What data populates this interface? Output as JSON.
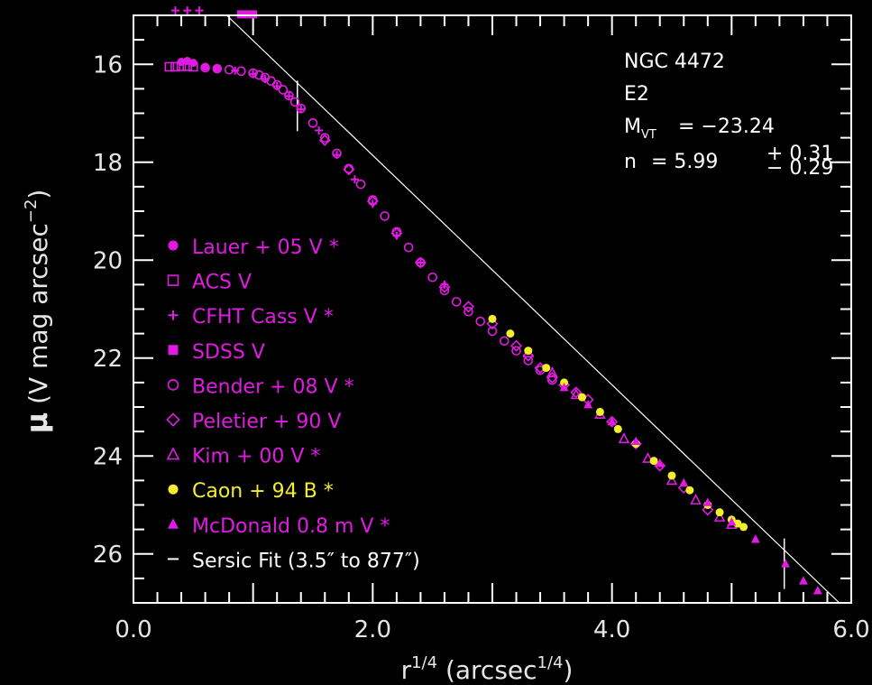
{
  "chart_data": {
    "type": "scatter",
    "xlabel_base": "r",
    "xlabel_exp": "1/4",
    "xlabel_units_open": " (arcsec",
    "xlabel_units_exp": "1/4",
    "xlabel_units_close": ")",
    "ylabel_mu": "μ",
    "ylabel_text": " (V mag arcsec",
    "ylabel_exp": "−2",
    "ylabel_close": ")",
    "xlim": [
      0.0,
      6.0
    ],
    "ylim": [
      27.0,
      15.0
    ],
    "x_ticks": [
      0.0,
      2.0,
      4.0,
      6.0
    ],
    "x_tick_labels": [
      "0.0",
      "2.0",
      "4.0",
      "6.0"
    ],
    "y_ticks": [
      16,
      18,
      20,
      22,
      24,
      26
    ],
    "y_tick_labels": [
      "16",
      "18",
      "20",
      "22",
      "24",
      "26"
    ],
    "x_minor_step": 0.2,
    "y_minor_step": 0.5,
    "info": {
      "galaxy": "NGC 4472",
      "type": "E2",
      "mag_label": "M",
      "mag_sub": "VT",
      "mag_value": "=  −23.24",
      "n_label": "n",
      "n_value": "=  5.99",
      "n_err_plus": "+ 0.31",
      "n_err_minus": "− 0.29"
    },
    "legend": [
      {
        "label": "Lauer + 05 V *",
        "marker": "filled-circle",
        "color": "#e11be1"
      },
      {
        "label": "ACS V",
        "marker": "open-square",
        "color": "#e11be1"
      },
      {
        "label": "CFHT Cass V *",
        "marker": "plus",
        "color": "#e11be1"
      },
      {
        "label": "SDSS V",
        "marker": "filled-square",
        "color": "#e11be1"
      },
      {
        "label": "Bender + 08 V *",
        "marker": "open-circle",
        "color": "#e11be1"
      },
      {
        "label": "Peletier + 90 V",
        "marker": "open-diamond",
        "color": "#e11be1"
      },
      {
        "label": "Kim + 00 V *",
        "marker": "open-triangle",
        "color": "#e11be1"
      },
      {
        "label": "Caon + 94 B *",
        "marker": "filled-circle",
        "color": "#f2ee2a"
      },
      {
        "label": "McDonald 0.8 m V *",
        "marker": "filled-triangle",
        "color": "#e11be1"
      },
      {
        "label": "Sersic Fit (3.5″ to 877″)",
        "marker": "dash",
        "color": "#ffffff"
      }
    ],
    "fit_line": {
      "x": [
        0.78,
        5.9
      ],
      "y": [
        15.0,
        27.0
      ],
      "color": "#ffffff"
    },
    "fit_range_markers": [
      {
        "x": 1.37,
        "y": 16.85
      },
      {
        "x": 5.44,
        "y": 26.2
      }
    ],
    "series": [
      {
        "name": "Lauer + 05 V *",
        "marker": "filled-circle",
        "color": "#e11be1",
        "x": [
          0.4,
          0.45,
          0.5,
          0.6,
          0.7
        ],
        "y": [
          15.95,
          15.93,
          15.97,
          16.05,
          16.08
        ]
      },
      {
        "name": "ACS V",
        "marker": "open-square",
        "color": "#e11be1",
        "x": [
          0.3,
          0.35,
          0.4,
          0.45,
          0.5
        ],
        "y": [
          16.05,
          16.05,
          16.04,
          16.04,
          16.05
        ]
      },
      {
        "name": "CFHT Cass V *",
        "marker": "plus",
        "color": "#e11be1",
        "x": [
          0.35,
          0.45,
          0.55,
          0.7,
          0.85,
          1.0,
          1.1,
          1.2,
          1.3,
          1.4,
          1.55,
          1.7,
          1.85,
          2.0,
          2.2,
          2.4,
          2.6
        ],
        "y": [
          14.9,
          14.9,
          14.9,
          16.1,
          16.13,
          16.2,
          16.3,
          16.45,
          16.65,
          16.92,
          17.35,
          17.85,
          18.35,
          18.85,
          19.5,
          20.05,
          20.5
        ]
      },
      {
        "name": "SDSS V",
        "marker": "filled-square",
        "color": "#e11be1",
        "x": [
          0.9,
          0.95,
          1.0
        ],
        "y": [
          14.98,
          14.98,
          14.98
        ]
      },
      {
        "name": "Bender + 08 V *",
        "marker": "open-circle",
        "color": "#e11be1",
        "x": [
          0.6,
          0.7,
          0.8,
          0.9,
          1.0,
          1.05,
          1.1,
          1.15,
          1.2,
          1.25,
          1.3,
          1.35,
          1.4,
          1.5,
          1.6,
          1.7,
          1.8,
          1.9,
          2.0,
          2.1,
          2.2,
          2.3,
          2.4,
          2.5,
          2.6,
          2.7,
          2.8,
          2.9,
          3.0,
          3.1,
          3.2,
          3.3,
          3.4,
          3.5
        ],
        "y": [
          16.07,
          16.09,
          16.11,
          16.14,
          16.18,
          16.22,
          16.27,
          16.34,
          16.42,
          16.52,
          16.64,
          16.77,
          16.9,
          17.2,
          17.5,
          17.82,
          18.13,
          18.45,
          18.77,
          19.1,
          19.42,
          19.74,
          20.05,
          20.35,
          20.62,
          20.85,
          21.05,
          21.25,
          21.45,
          21.65,
          21.85,
          22.05,
          22.25,
          22.45
        ]
      },
      {
        "name": "Peletier + 90 V",
        "marker": "open-diamond",
        "color": "#e11be1",
        "x": [
          1.6,
          1.8,
          2.0,
          2.2,
          2.4,
          2.6,
          2.8,
          3.0,
          3.2,
          3.3,
          3.4,
          3.5,
          3.6,
          3.7,
          3.8,
          4.0,
          4.2,
          4.4,
          4.6,
          4.8
        ],
        "y": [
          17.55,
          18.15,
          18.8,
          19.45,
          20.05,
          20.55,
          20.95,
          21.3,
          21.75,
          21.95,
          22.2,
          22.4,
          22.55,
          22.7,
          22.85,
          23.3,
          23.75,
          24.2,
          24.65,
          25.1
        ]
      },
      {
        "name": "Kim + 00 V *",
        "marker": "open-triangle",
        "color": "#e11be1",
        "x": [
          3.3,
          3.5,
          3.7,
          3.9,
          4.1,
          4.3,
          4.5,
          4.7,
          4.9,
          5.0
        ],
        "y": [
          21.9,
          22.3,
          22.75,
          23.15,
          23.65,
          24.05,
          24.5,
          24.9,
          25.25,
          25.4
        ]
      },
      {
        "name": "Caon + 94 B *",
        "marker": "filled-circle",
        "color": "#f2ee2a",
        "x": [
          3.0,
          3.15,
          3.3,
          3.45,
          3.6,
          3.75,
          3.9,
          4.05,
          4.2,
          4.35,
          4.5,
          4.65,
          4.8,
          4.9,
          5.0,
          5.05,
          5.1
        ],
        "y": [
          21.2,
          21.5,
          21.85,
          22.2,
          22.5,
          22.8,
          23.1,
          23.45,
          23.75,
          24.1,
          24.4,
          24.7,
          25.0,
          25.15,
          25.3,
          25.38,
          25.45
        ]
      },
      {
        "name": "McDonald 0.8 m V *",
        "marker": "filled-triangle",
        "color": "#e11be1",
        "x": [
          3.6,
          3.8,
          4.0,
          4.2,
          4.4,
          4.6,
          4.8,
          5.0,
          5.2,
          5.45,
          5.6,
          5.72
        ],
        "y": [
          22.6,
          22.95,
          23.3,
          23.7,
          24.15,
          24.55,
          24.95,
          25.35,
          25.7,
          26.2,
          26.55,
          26.75
        ]
      }
    ]
  }
}
